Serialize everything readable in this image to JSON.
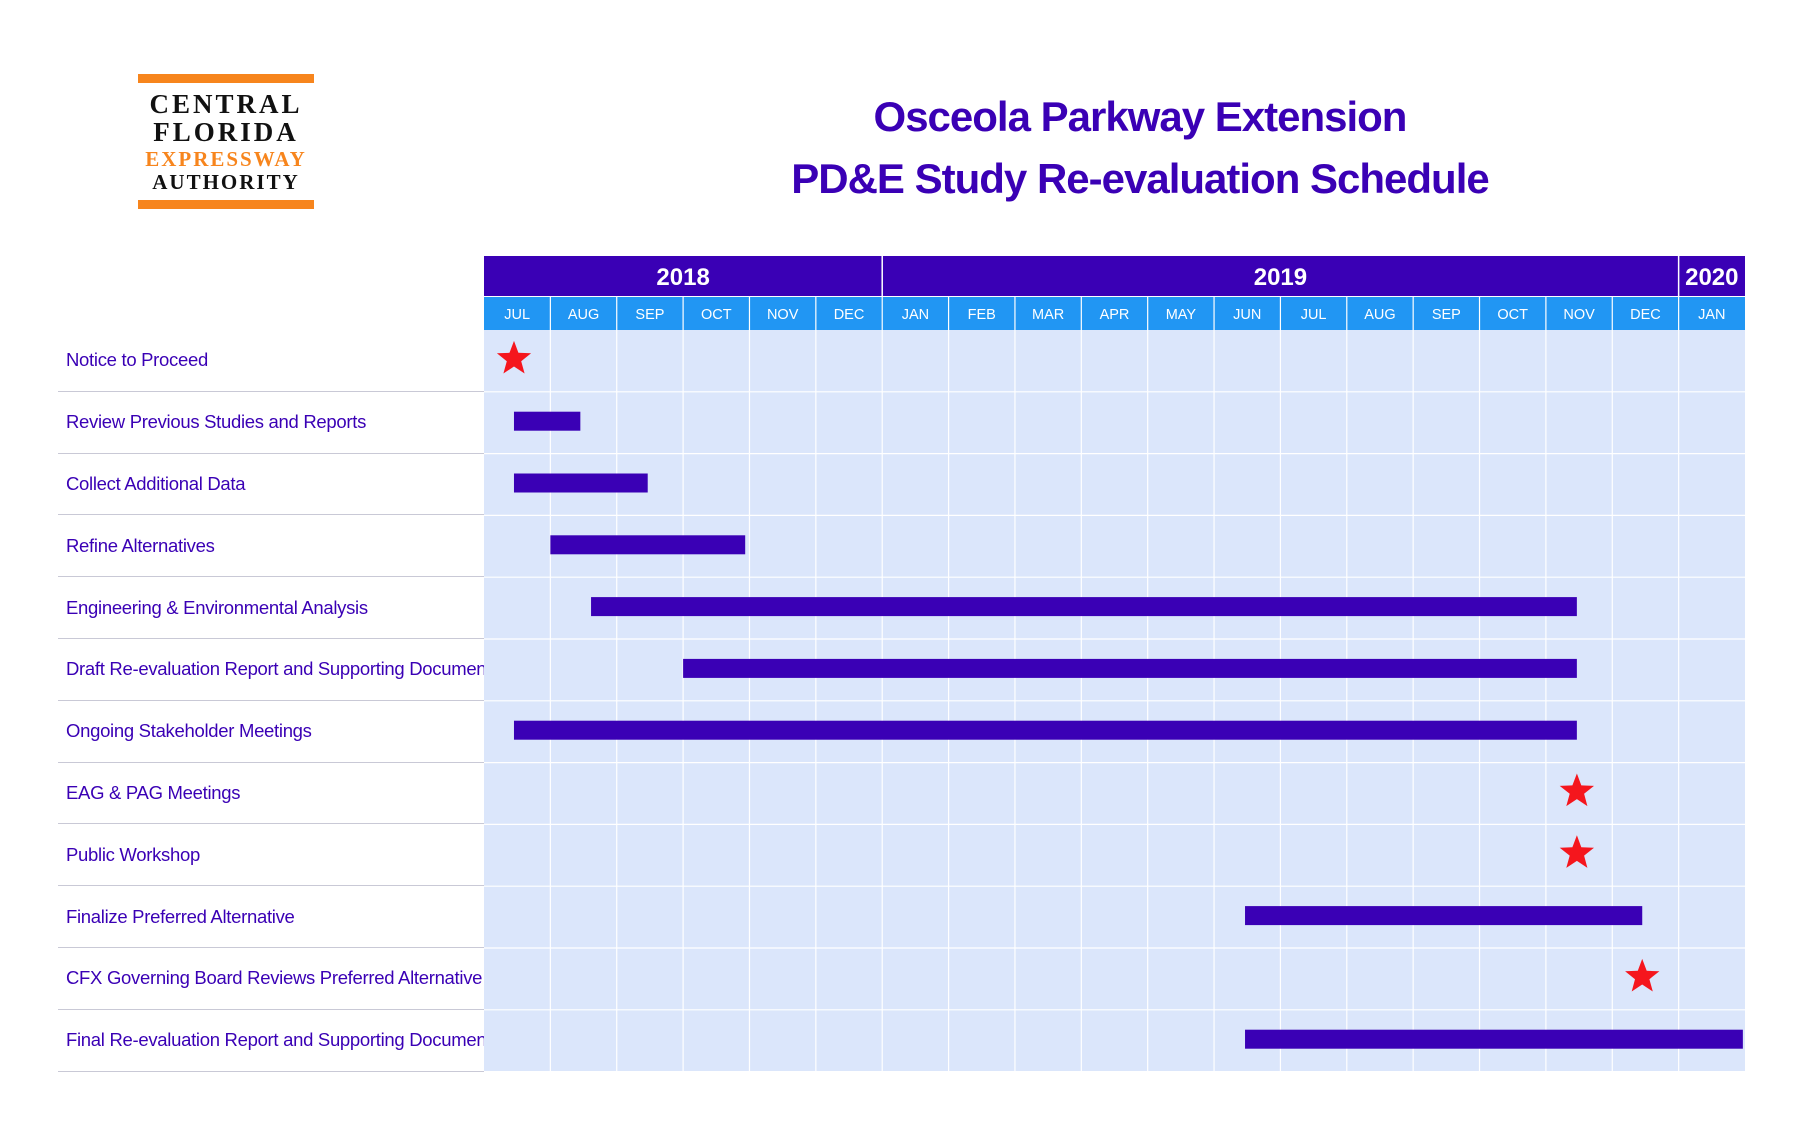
{
  "logo": {
    "line1": "CENTRAL",
    "line2": "FLORIDA",
    "line3": "EXPRESSWAY",
    "line4": "AUTHORITY"
  },
  "header": {
    "title_line1": "Osceola Parkway Extension",
    "title_line2": "PD&E Study Re-evaluation Schedule"
  },
  "colors": {
    "header_bg": "#3a00b5",
    "month_bg": "#2196f3",
    "grid_bg": "#dbe6fb",
    "bar": "#3a00b5",
    "milestone": "#f5161d",
    "label_text": "#3a00b5"
  },
  "chart_data": {
    "type": "gantt",
    "title": "Osceola Parkway Extension PD&E Study Re-evaluation Schedule",
    "years": [
      {
        "label": "2018",
        "months": 6
      },
      {
        "label": "2019",
        "months": 12
      },
      {
        "label": "2020",
        "months": 1
      }
    ],
    "months": [
      "JUL",
      "AUG",
      "SEP",
      "OCT",
      "NOV",
      "DEC",
      "JAN",
      "FEB",
      "MAR",
      "APR",
      "MAY",
      "JUN",
      "JUL",
      "AUG",
      "SEP",
      "OCT",
      "NOV",
      "DEC",
      "JAN"
    ],
    "axis_start": "2018-07",
    "axis_end": "2020-01",
    "tasks": [
      {
        "name": "Notice to Proceed",
        "type": "milestone",
        "date": "2018-07-15"
      },
      {
        "name": "Review Previous Studies and Reports",
        "type": "bar",
        "start": "2018-07-15",
        "end": "2018-08-15"
      },
      {
        "name": "Collect Additional Data",
        "type": "bar",
        "start": "2018-07-15",
        "end": "2018-09-15"
      },
      {
        "name": "Refine Alternatives",
        "type": "bar",
        "start": "2018-08-01",
        "end": "2018-10-30"
      },
      {
        "name": "Engineering & Environmental Analysis",
        "type": "bar",
        "start": "2018-08-20",
        "end": "2019-11-15"
      },
      {
        "name": "Draft Re-evaluation Report and Supporting Documents",
        "type": "bar",
        "start": "2018-10-01",
        "end": "2019-11-15"
      },
      {
        "name": "Ongoing Stakeholder Meetings",
        "type": "bar",
        "start": "2018-07-15",
        "end": "2019-11-15"
      },
      {
        "name": "EAG & PAG Meetings",
        "type": "milestone",
        "date": "2019-11-15"
      },
      {
        "name": "Public Workshop",
        "type": "milestone",
        "date": "2019-11-15"
      },
      {
        "name": "Finalize Preferred Alternative",
        "type": "bar",
        "start": "2019-06-15",
        "end": "2019-12-15"
      },
      {
        "name": "CFX Governing Board Reviews Preferred Alternative",
        "type": "milestone",
        "date": "2019-12-15"
      },
      {
        "name": "Final Re-evaluation Report and Supporting Documents",
        "type": "bar",
        "start": "2019-06-15",
        "end": "2020-01-31"
      }
    ]
  }
}
